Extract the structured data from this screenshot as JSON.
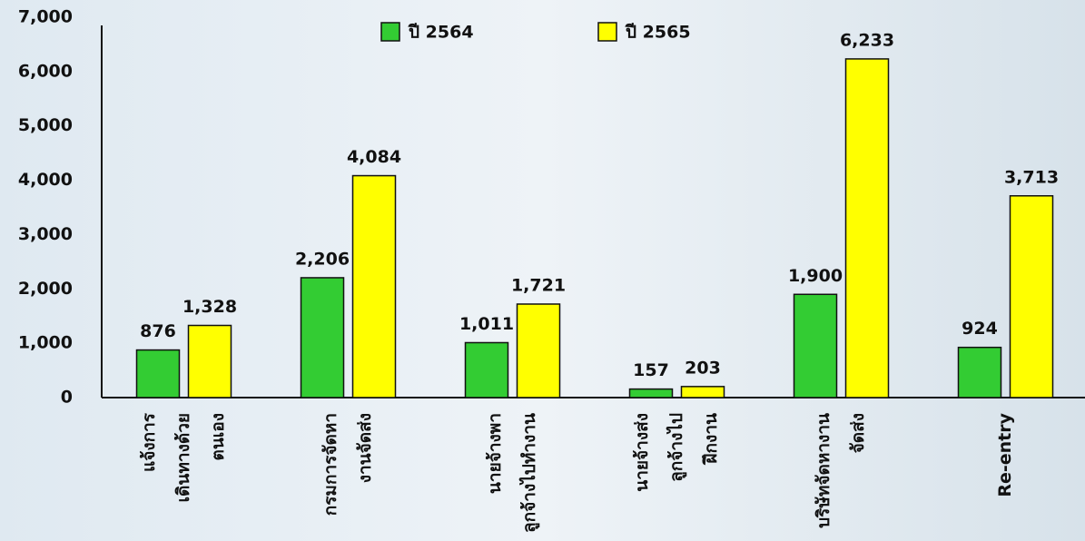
{
  "chart_data": {
    "type": "bar",
    "categories": [
      [
        "แจ้งการ",
        "เดินทางด้วย",
        "ตนเอง"
      ],
      [
        "กรมการจัดหา",
        "งานจัดส่ง"
      ],
      [
        "นายจ้างพา",
        "ลูกจ้างไปทำงาน"
      ],
      [
        "นายจ้างส่ง",
        "ลูกจ้างไป",
        "ฝึกงาน"
      ],
      [
        "บริษัทจัดหางาน",
        "จัดส่ง"
      ],
      [
        "Re-entry"
      ]
    ],
    "series": [
      {
        "name": "ปี 2564",
        "color": "#33cc33",
        "values": [
          876,
          2206,
          1011,
          157,
          1900,
          924
        ],
        "value_labels": [
          "876",
          "2,206",
          "1,011",
          "157",
          "1,900",
          "924"
        ]
      },
      {
        "name": "ปี 2565",
        "color": "#ffff00",
        "values": [
          1328,
          4084,
          1721,
          203,
          6233,
          3713
        ],
        "value_labels": [
          "1,328",
          "4,084",
          "1,721",
          "203",
          "6,233",
          "3,713"
        ]
      }
    ],
    "ylim": [
      0,
      7000
    ],
    "yticks": [
      0,
      {
        "value": 1000,
        "label": "1,000"
      },
      {
        "value": 2000,
        "label": "2,000"
      },
      {
        "value": 3000,
        "label": "3,000"
      },
      {
        "value": 4000,
        "label": "4,000"
      },
      {
        "value": 5000,
        "label": "5,000"
      },
      {
        "value": 6000,
        "label": "6,000"
      },
      {
        "value": 7000,
        "label": "7,000"
      }
    ],
    "grid": false
  }
}
